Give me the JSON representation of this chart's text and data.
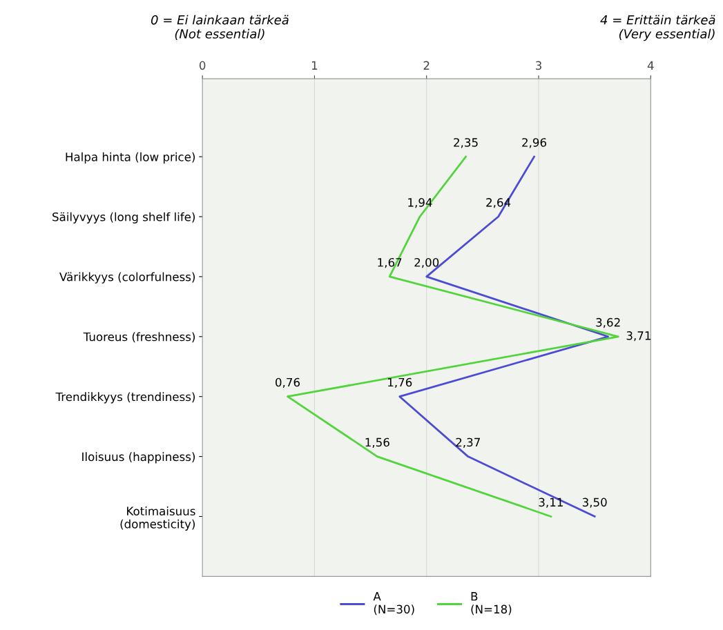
{
  "chart_data": {
    "type": "line",
    "orientation": "horizontal",
    "categories": [
      "Halpa hinta (low price)",
      "Säilyvyys (long shelf life)",
      "Värikkyys (colorfulness)",
      "Tuoreus (freshness)",
      "Trendikkyys (trendiness)",
      "Iloisuus (happiness)",
      "Kotimaisuus\n(domesticity)"
    ],
    "series": [
      {
        "name": "A\n(N=30)",
        "color": "#4b4bd6",
        "values": [
          2.96,
          2.64,
          2.0,
          3.62,
          1.76,
          2.37,
          3.5
        ],
        "value_labels": [
          "2,96",
          "2,64",
          "2,00",
          "3,62",
          "1,76",
          "2,37",
          "3,50"
        ]
      },
      {
        "name": "B\n(N=18)",
        "color": "#52d43c",
        "values": [
          2.35,
          1.94,
          1.67,
          3.71,
          0.76,
          1.56,
          3.11
        ],
        "value_labels": [
          "2,35",
          "1,94",
          "1,67",
          "3,71",
          "0,76",
          "1,56",
          "3,11"
        ]
      }
    ],
    "xlim": [
      0,
      4
    ],
    "xticks": [
      0,
      1,
      2,
      3,
      4
    ],
    "grid": "x",
    "legend": "bottom",
    "marker": "none",
    "line_style": "solid",
    "annotations": [
      "0 = Ei lainkaan tärkeä\n(Not essential)",
      "4 = Erittäin tärkeä\n(Very essential)"
    ]
  }
}
